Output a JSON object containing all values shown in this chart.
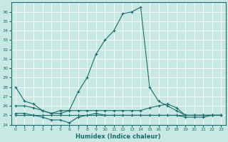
{
  "xlabel": "Humidex (Indice chaleur)",
  "xlim": [
    -0.5,
    23.5
  ],
  "ylim": [
    24,
    37
  ],
  "yticks": [
    24,
    25,
    26,
    27,
    28,
    29,
    30,
    31,
    32,
    33,
    34,
    35,
    36
  ],
  "xticks": [
    0,
    1,
    2,
    3,
    4,
    5,
    6,
    7,
    8,
    9,
    10,
    11,
    12,
    13,
    14,
    15,
    16,
    17,
    18,
    19,
    20,
    21,
    22,
    23
  ],
  "background_color": "#c8e8e4",
  "grid_color": "#b0d8d4",
  "line_color": "#1a6b6b",
  "series": [
    [
      28.0,
      26.5,
      26.2,
      25.5,
      25.2,
      25.5,
      25.5,
      27.5,
      29.0,
      31.5,
      33.0,
      34.0,
      35.8,
      36.0,
      36.5,
      28.0,
      26.5,
      26.0,
      25.5,
      25.0,
      25.0,
      25.0,
      25.0,
      25.0
    ],
    [
      26.0,
      26.0,
      25.8,
      25.5,
      25.2,
      25.2,
      25.5,
      25.5,
      25.5,
      25.5,
      25.5,
      25.5,
      25.5,
      25.5,
      25.5,
      25.8,
      26.0,
      26.2,
      25.8,
      25.0,
      25.0,
      25.0,
      25.0,
      25.0
    ],
    [
      25.2,
      25.2,
      25.0,
      24.8,
      24.5,
      24.5,
      24.2,
      24.8,
      25.0,
      25.2,
      25.0,
      25.0,
      25.0,
      25.0,
      25.0,
      25.0,
      25.0,
      25.0,
      25.0,
      24.8,
      24.8,
      24.8,
      25.0,
      25.0
    ],
    [
      25.0,
      25.0,
      25.0,
      25.0,
      25.0,
      25.0,
      25.0,
      25.0,
      25.0,
      25.0,
      25.0,
      25.0,
      25.0,
      25.0,
      25.0,
      25.0,
      25.0,
      25.0,
      25.0,
      25.0,
      25.0,
      25.0,
      25.0,
      25.0
    ]
  ]
}
